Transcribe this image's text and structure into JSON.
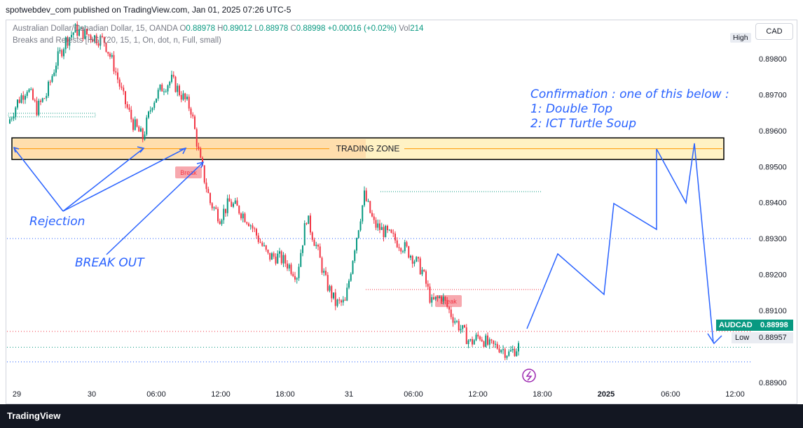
{
  "header": {
    "published_by": "spotwebdev_com published on TradingView.com, Jan 01, 2025 07:26 UTC-5"
  },
  "symbol_legend": {
    "name": "Australian Dollar/Canadian Dollar, 15, OANDA",
    "open_label": "O",
    "open": "0.88978",
    "high_label": "H",
    "high": "0.89012",
    "low_label": "L",
    "low": "0.88978",
    "close_label": "C",
    "close": "0.88998",
    "change": "+0.00016 (+0.02%)",
    "vol_label": "Vol",
    "vol": "214"
  },
  "indicator_legend": "Breaks and Retests [HG] (20, 15, 1, On, dot, n, Full, small)",
  "currency_button": "CAD",
  "high_label": "High",
  "price_axis": [
    "0.89800",
    "0.89700",
    "0.89600",
    "0.89500",
    "0.89400",
    "0.89300",
    "0.89200",
    "0.89100",
    "0.88900"
  ],
  "time_axis": [
    "29",
    "30",
    "06:00",
    "12:00",
    "18:00",
    "31",
    "06:00",
    "12:00",
    "18:00",
    "2025",
    "06:00",
    "12:00"
  ],
  "last_price_tag": {
    "symbol": "AUDCAD",
    "price": "0.88998"
  },
  "low_tag": {
    "label": "Low",
    "price": "0.88957"
  },
  "annotations": {
    "trading_zone": "TRADING ZONE",
    "confirmation_title": "Confirmation :  one of this below :",
    "confirmation_1": "1: Double Top",
    "confirmation_2": "2: ICT Turtle Soup",
    "rejection": "Rejection",
    "break_out": "BREAK OUT",
    "break_label_1": "Break",
    "break_label_2": "Break"
  },
  "footer": {
    "brand": "TradingView"
  },
  "colors": {
    "up": "#089981",
    "down": "#f23645",
    "drawing": "#2962ff",
    "zone_fill": "#fff2c4"
  },
  "chart_data": {
    "type": "line",
    "symbol": "AUDCAD",
    "timeframe": "15",
    "ylim": [
      0.88855,
      0.89905
    ],
    "series": [
      {
        "name": "AUDCAD",
        "x": [
          "29",
          "",
          "",
          "",
          "",
          "",
          "",
          "",
          "30",
          "",
          "",
          "",
          "",
          "06:00",
          "",
          "",
          "",
          "",
          "",
          "",
          "12:00",
          "",
          "",
          "",
          "",
          "",
          "",
          "18:00",
          "",
          "",
          "",
          "",
          "",
          "",
          "31",
          "",
          "",
          "",
          "",
          "",
          "",
          "06:00",
          "",
          "",
          "",
          "",
          "",
          "",
          "12:00",
          "",
          "",
          "",
          "",
          ""
        ],
        "values": [
          0.8962,
          0.8968,
          0.8972,
          0.8966,
          0.897,
          0.8979,
          0.8985,
          0.8988,
          0.8987,
          0.8986,
          0.8985,
          0.8978,
          0.8969,
          0.8962,
          0.8958,
          0.8968,
          0.8972,
          0.8974,
          0.897,
          0.8966,
          0.8951,
          0.894,
          0.8936,
          0.894,
          0.8938,
          0.8935,
          0.893,
          0.8925,
          0.8925,
          0.8923,
          0.892,
          0.8936,
          0.8928,
          0.8918,
          0.8912,
          0.8912,
          0.8928,
          0.8942,
          0.8934,
          0.8932,
          0.893,
          0.8928,
          0.8925,
          0.8921,
          0.8912,
          0.8914,
          0.8909,
          0.8905,
          0.8901,
          0.8903,
          0.89,
          0.89,
          0.8898,
          0.89
        ]
      }
    ],
    "levels": {
      "zone_top": 0.8958,
      "zone_bottom": 0.8952,
      "last": 0.88998,
      "low": 0.88957
    }
  }
}
